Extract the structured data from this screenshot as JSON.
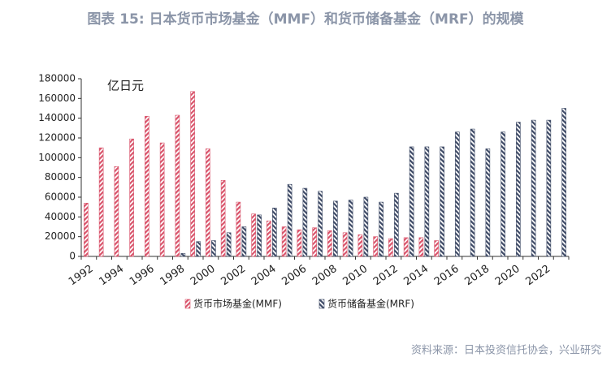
{
  "chart_data": {
    "type": "bar",
    "title": "图表 15: 日本货币市场基金（MMF）和货币储备基金（MRF）的规模",
    "unit": "亿日元",
    "source": "资料来源：日本投资信托协会，兴业研究",
    "categories": [
      "1992",
      null,
      "1994",
      null,
      "1996",
      null,
      "1998",
      null,
      "2000",
      null,
      "2002",
      null,
      "2004",
      null,
      "2006",
      null,
      "2008",
      null,
      "2010",
      null,
      "2012",
      null,
      "2014",
      null,
      "2016",
      null,
      "2018",
      null,
      "2020",
      null,
      "2022",
      null
    ],
    "series": [
      {
        "name": "货币市场基金(MMF)",
        "color": "#d9546b",
        "values": [
          54000,
          110000,
          91000,
          119000,
          142000,
          115000,
          143000,
          167000,
          109000,
          77000,
          55000,
          43000,
          36000,
          30000,
          27000,
          29000,
          26000,
          24000,
          22000,
          20000,
          18000,
          19000,
          19000,
          16000,
          null,
          null,
          null,
          null,
          null,
          null,
          null,
          null
        ]
      },
      {
        "name": "货币储备基金(MRF)",
        "color": "#3e4a66",
        "values": [
          null,
          null,
          null,
          null,
          null,
          null,
          3000,
          15000,
          16000,
          24000,
          30000,
          42000,
          49000,
          73000,
          69000,
          66000,
          56000,
          57000,
          60000,
          55000,
          64000,
          111000,
          111000,
          111000,
          126000,
          129000,
          109000,
          126000,
          136000,
          138000,
          138000,
          150000
        ]
      }
    ],
    "ylim": [
      0,
      180000
    ],
    "yticks": [
      0,
      20000,
      40000,
      60000,
      80000,
      100000,
      120000,
      140000,
      160000,
      180000
    ],
    "grid": false
  }
}
